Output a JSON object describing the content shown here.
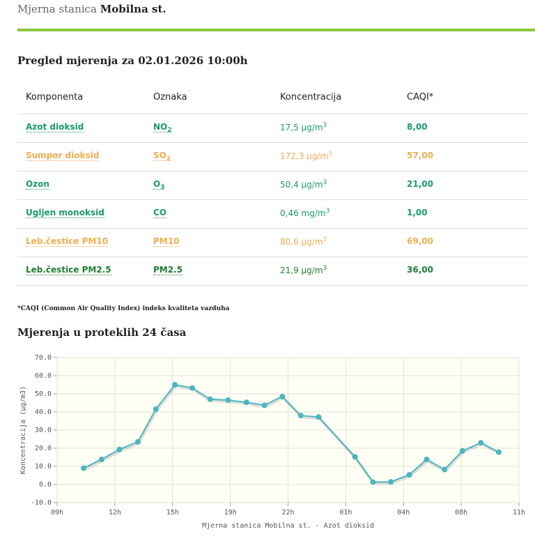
{
  "header": {
    "prefix": "Mjerna stanica",
    "station": "Mobilna st."
  },
  "overview_title": "Pregled mjerenja za 02.01.2026 10:00h",
  "table": {
    "headers": [
      "Komponenta",
      "Oznaka",
      "Koncentracija",
      "CAQI*"
    ],
    "rows": [
      {
        "name": "Azot dioksid",
        "symbol": "NO",
        "symbol_sub": "2",
        "concentration": "17,5 μg/m",
        "concentration_sup": "3",
        "caqi": "8,00",
        "color": "#1a9a6c"
      },
      {
        "name": "Sumpor dioksid",
        "symbol": "SO",
        "symbol_sub": "2",
        "concentration": "172,3 μg/m",
        "concentration_sup": "3",
        "caqi": "57,00",
        "color": "#f0ad4e"
      },
      {
        "name": "Ozon",
        "symbol": "O",
        "symbol_sub": "3",
        "concentration": "50,4 μg/m",
        "concentration_sup": "3",
        "caqi": "21,00",
        "color": "#1a9a6c"
      },
      {
        "name": "Ugljen monoksid",
        "symbol": "CO",
        "symbol_sub": null,
        "concentration": "0,46 mg/m",
        "concentration_sup": "3",
        "caqi": "1,00",
        "color": "#1a9a6c"
      },
      {
        "name": "Leb.čestice PM10",
        "symbol": "PM10",
        "symbol_sub": null,
        "concentration": "80,6 μg/m",
        "concentration_sup": "3",
        "caqi": "69,00",
        "color": "#f0ad4e"
      },
      {
        "name": "Leb.čestice PM2.5",
        "symbol": "PM2.5",
        "symbol_sub": null,
        "concentration": "21,9 μg/m",
        "concentration_sup": "3",
        "caqi": "36,00",
        "color": "#1e7d32"
      }
    ]
  },
  "footnote": "*CAQI (Common Air Quality Index) indeks kvaliteta vazduha",
  "section_title": "Mjerenja u proteklih 24 časa",
  "chart_data": {
    "type": "line",
    "y_label": "Koncentracija (μg/m3)",
    "x_label": "Mjerna stanica Mobilna st. - Azot dioksid",
    "xlim": [
      0,
      8
    ],
    "xticks": [
      {
        "value": 0,
        "label": "09h"
      },
      {
        "value": 1,
        "label": "12h"
      },
      {
        "value": 2,
        "label": "15h"
      },
      {
        "value": 3,
        "label": "19h"
      },
      {
        "value": 4,
        "label": "22h"
      },
      {
        "value": 5,
        "label": "01h"
      },
      {
        "value": 6,
        "label": "04h"
      },
      {
        "value": 7,
        "label": "08h"
      },
      {
        "value": 8,
        "label": "11h"
      }
    ],
    "ylim": [
      -10,
      70
    ],
    "yticks": [
      {
        "value": -10,
        "label": "-10.0"
      },
      {
        "value": 0,
        "label": "0.0"
      },
      {
        "value": 10,
        "label": "10.0"
      },
      {
        "value": 20,
        "label": "20.0"
      },
      {
        "value": 30,
        "label": "30.0"
      },
      {
        "value": 40,
        "label": "40.0"
      },
      {
        "value": 50,
        "label": "50.0"
      },
      {
        "value": 60,
        "label": "60.0"
      },
      {
        "value": 70,
        "label": "70.0"
      }
    ],
    "grid": true,
    "series": [
      {
        "color": "#4bb5c1",
        "x": [
          0.46,
          0.77,
          1.08,
          1.4,
          1.71,
          2.04,
          2.34,
          2.65,
          2.96,
          3.28,
          3.59,
          3.9,
          4.22,
          4.53,
          5.16,
          5.47,
          5.78,
          6.1,
          6.4,
          6.71,
          7.02,
          7.34,
          7.65
        ],
        "values": [
          9,
          13.8,
          19.3,
          23.5,
          41.5,
          55,
          53.2,
          47,
          46.5,
          45.3,
          43.7,
          48.5,
          38,
          37.2,
          15.2,
          1.3,
          1.4,
          5.3,
          13.8,
          8.2,
          18.5,
          23,
          17.8
        ]
      }
    ]
  }
}
